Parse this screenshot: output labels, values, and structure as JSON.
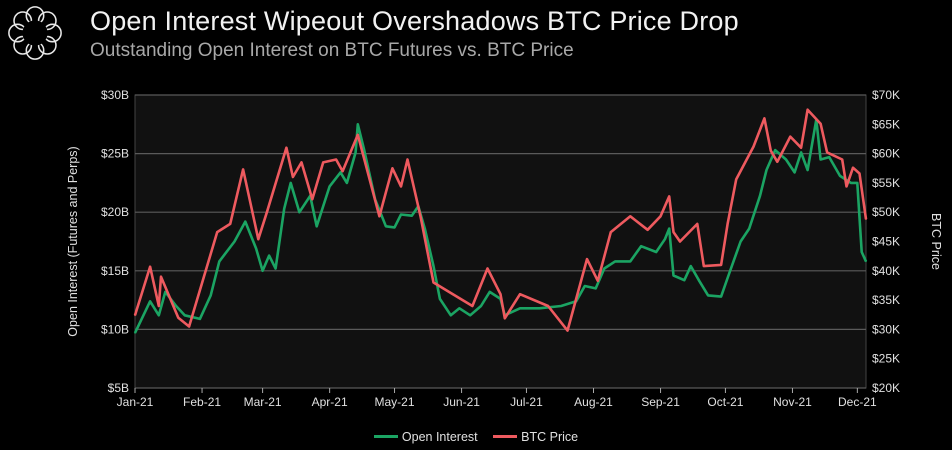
{
  "header": {
    "title": "Open Interest Wipeout Overshadows BTC Price Drop",
    "subtitle": "Outstanding Open Interest on BTC Futures vs. BTC Price"
  },
  "colors": {
    "open_interest": "#1ba463",
    "btc_price": "#ee5a5f",
    "plot_bg": "#111111",
    "grid": "#5a5a5a"
  },
  "chart_data": {
    "type": "line",
    "title": "Open Interest Wipeout Overshadows BTC Price Drop",
    "subtitle": "Outstanding Open Interest on BTC Futures vs. BTC Price",
    "x_unit": "days since 2021-01-01",
    "xlim": [
      0,
      338
    ],
    "x_ticks": [
      {
        "value": 0,
        "label": "Jan-21"
      },
      {
        "value": 31,
        "label": "Feb-21"
      },
      {
        "value": 59,
        "label": "Mar-21"
      },
      {
        "value": 90,
        "label": "Apr-21"
      },
      {
        "value": 120,
        "label": "May-21"
      },
      {
        "value": 151,
        "label": "Jun-21"
      },
      {
        "value": 181,
        "label": "Jul-21"
      },
      {
        "value": 212,
        "label": "Aug-21"
      },
      {
        "value": 243,
        "label": "Sep-21"
      },
      {
        "value": 273,
        "label": "Oct-21"
      },
      {
        "value": 304,
        "label": "Nov-21"
      },
      {
        "value": 334,
        "label": "Dec-21"
      }
    ],
    "ylabel": "Open Interest (Futures and Perps)",
    "ylim": [
      5,
      30
    ],
    "y_ticks": [
      {
        "value": 5,
        "label": "$5B"
      },
      {
        "value": 10,
        "label": "$10B"
      },
      {
        "value": 15,
        "label": "$15B"
      },
      {
        "value": 20,
        "label": "$20B"
      },
      {
        "value": 25,
        "label": "$25B"
      },
      {
        "value": 30,
        "label": "$30B"
      }
    ],
    "y2label": "BTC Price",
    "y2lim": [
      20,
      70
    ],
    "y2_ticks": [
      {
        "value": 20,
        "label": "$20K"
      },
      {
        "value": 25,
        "label": "$25K"
      },
      {
        "value": 30,
        "label": "$30K"
      },
      {
        "value": 35,
        "label": "$35K"
      },
      {
        "value": 40,
        "label": "$40K"
      },
      {
        "value": 45,
        "label": "$45K"
      },
      {
        "value": 50,
        "label": "$50K"
      },
      {
        "value": 55,
        "label": "$55K"
      },
      {
        "value": 60,
        "label": "$60K"
      },
      {
        "value": 65,
        "label": "$65K"
      },
      {
        "value": 70,
        "label": "$70K"
      }
    ],
    "grid": true,
    "legend_position": "bottom-center",
    "series": [
      {
        "name": "Open Interest",
        "axis": "left",
        "unit": "USD billions",
        "x": [
          0,
          7,
          11,
          14,
          19,
          23,
          30,
          35,
          39,
          46,
          51,
          56,
          59,
          62,
          65,
          69,
          72,
          76,
          81,
          84,
          90,
          95,
          98,
          102,
          103,
          106,
          111,
          116,
          120,
          123,
          128,
          131,
          134,
          138,
          141,
          146,
          150,
          155,
          160,
          164,
          169,
          171,
          178,
          187,
          197,
          204,
          208,
          213,
          217,
          222,
          229,
          234,
          241,
          245,
          247,
          249,
          254,
          257,
          261,
          265,
          271,
          275,
          280,
          284,
          289,
          292,
          296,
          301,
          305,
          308,
          311,
          315,
          317,
          321,
          326,
          331,
          334,
          336,
          338
        ],
        "y": [
          9.7,
          12.4,
          11.2,
          13.2,
          12.0,
          11.2,
          10.9,
          12.9,
          15.8,
          17.5,
          19.2,
          16.9,
          15.0,
          16.3,
          15.2,
          20.3,
          22.5,
          20.0,
          21.4,
          18.8,
          22.2,
          23.4,
          22.5,
          25.1,
          27.5,
          25.3,
          21.1,
          18.8,
          18.7,
          19.8,
          19.7,
          20.5,
          18.6,
          15.4,
          12.6,
          11.2,
          11.8,
          11.2,
          12.0,
          13.2,
          12.6,
          11.2,
          11.8,
          11.8,
          12.0,
          12.4,
          13.7,
          13.5,
          15.2,
          15.8,
          15.8,
          17.1,
          16.6,
          17.7,
          18.6,
          14.6,
          14.2,
          15.4,
          14.1,
          12.9,
          12.8,
          14.9,
          17.5,
          18.6,
          21.4,
          23.6,
          25.3,
          24.5,
          23.4,
          25.1,
          23.6,
          27.9,
          24.5,
          24.7,
          23.1,
          22.5,
          22.5,
          16.6,
          15.8
        ]
      },
      {
        "name": "BTC Price",
        "axis": "right",
        "unit": "USD thousands",
        "x": [
          0,
          7,
          11,
          12,
          20,
          25,
          38,
          44,
          50,
          57,
          61,
          70,
          73,
          77,
          82,
          87,
          93,
          96,
          103,
          113,
          119,
          123,
          126,
          132,
          138,
          147,
          156,
          163,
          169,
          171,
          178,
          191,
          200,
          209,
          214,
          220,
          229,
          237,
          243,
          247,
          249,
          252,
          260,
          263,
          271,
          274,
          278,
          286,
          291,
          294,
          297,
          303,
          308,
          311,
          317,
          320,
          327,
          329,
          332,
          335,
          338
        ],
        "y": [
          32.4,
          40.7,
          34.0,
          39.0,
          32.0,
          30.5,
          46.6,
          48.0,
          57.3,
          45.4,
          50.0,
          61.0,
          56.0,
          58.5,
          52.2,
          58.5,
          59.0,
          57.0,
          63.2,
          49.3,
          57.5,
          54.4,
          59.0,
          49.3,
          38.0,
          36.0,
          34.0,
          40.4,
          36.0,
          31.9,
          36.0,
          34.0,
          29.8,
          42.0,
          38.3,
          46.6,
          49.3,
          47.0,
          49.3,
          52.7,
          46.6,
          45.0,
          48.0,
          40.8,
          41.0,
          48.0,
          55.6,
          61.2,
          66.0,
          60.5,
          58.6,
          62.9,
          61.0,
          67.5,
          65.1,
          60.2,
          59.0,
          54.4,
          57.6,
          56.6,
          48.8
        ]
      }
    ]
  }
}
